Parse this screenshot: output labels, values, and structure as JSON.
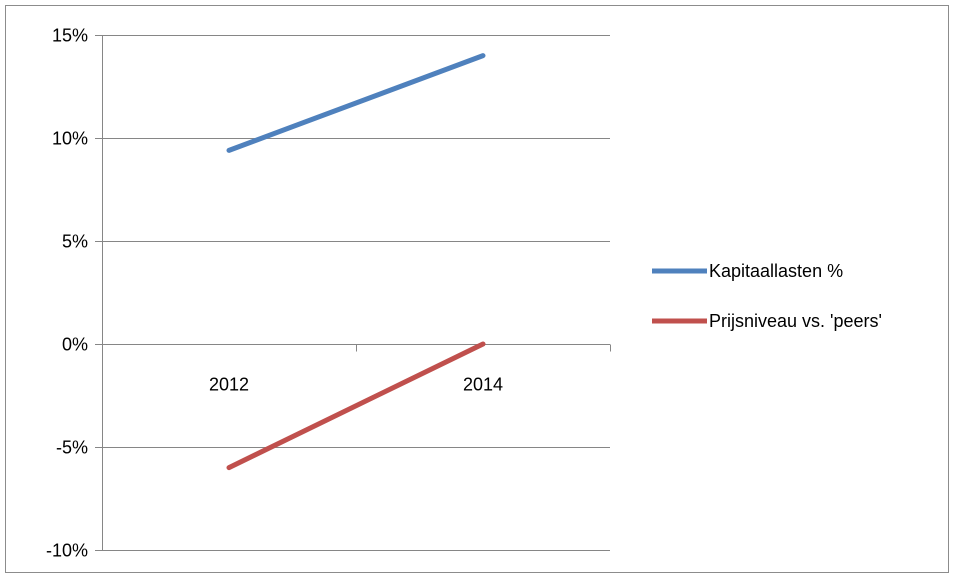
{
  "chart_data": {
    "type": "line",
    "title": "",
    "xlabel": "",
    "ylabel": "",
    "categories": [
      "2012",
      "2014"
    ],
    "ylim": [
      -10,
      15
    ],
    "yticks": [
      -10,
      -5,
      0,
      5,
      10,
      15
    ],
    "ytick_labels": [
      "-10%",
      "-5%",
      "0%",
      "5%",
      "10%",
      "15%"
    ],
    "grid": true,
    "legend_position": "right",
    "series": [
      {
        "name": "Kapitaallasten %",
        "color": "#4f81bd",
        "values": [
          9.4,
          14.0
        ]
      },
      {
        "name": "Prijsniveau vs. 'peers'",
        "color": "#c0504d",
        "values": [
          -6.0,
          0.0
        ]
      }
    ]
  }
}
